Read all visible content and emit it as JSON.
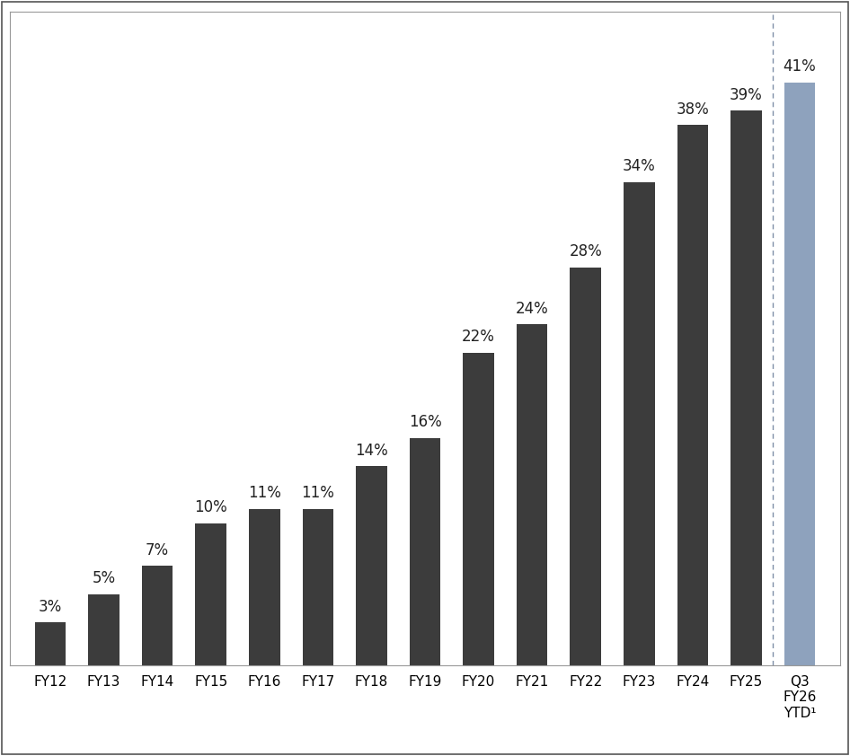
{
  "chart_data": {
    "type": "bar",
    "categories": [
      "FY12",
      "FY13",
      "FY14",
      "FY15",
      "FY16",
      "FY17",
      "FY18",
      "FY19",
      "FY20",
      "FY21",
      "FY22",
      "FY23",
      "FY24",
      "FY25",
      "Q3\nFY26\nYTD¹"
    ],
    "values": [
      3,
      5,
      7,
      10,
      11,
      11,
      14,
      16,
      22,
      24,
      28,
      34,
      38,
      39,
      41
    ],
    "value_labels": [
      "3%",
      "5%",
      "7%",
      "10%",
      "11%",
      "11%",
      "14%",
      "16%",
      "22%",
      "24%",
      "28%",
      "34%",
      "38%",
      "39%",
      "41%"
    ],
    "colors": [
      "#3c3c3c",
      "#3c3c3c",
      "#3c3c3c",
      "#3c3c3c",
      "#3c3c3c",
      "#3c3c3c",
      "#3c3c3c",
      "#3c3c3c",
      "#3c3c3c",
      "#3c3c3c",
      "#3c3c3c",
      "#3c3c3c",
      "#3c3c3c",
      "#3c3c3c",
      "#8ea2bd"
    ],
    "ylim": [
      0,
      46
    ],
    "data_labels": true,
    "tick_labels": "x"
  }
}
